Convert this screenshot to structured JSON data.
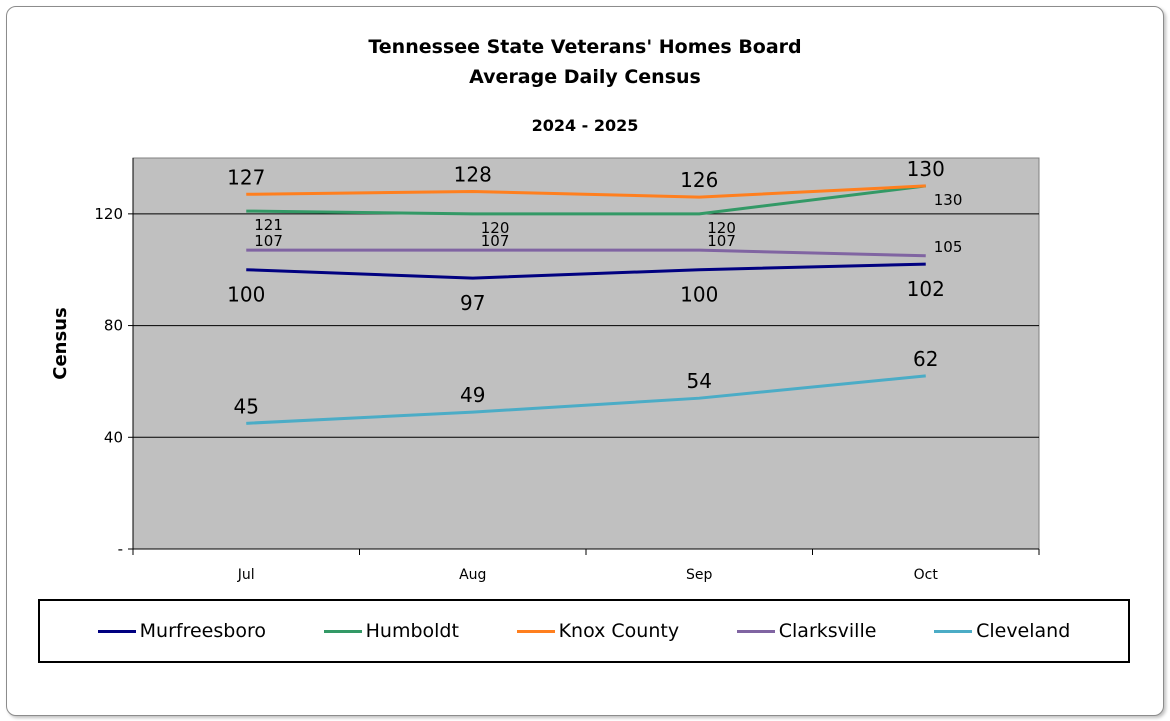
{
  "chart_data": {
    "type": "line",
    "title": "Tennessee State Veterans' Homes Board",
    "subtitle": "Average Daily Census",
    "period": "2024 - 2025",
    "ylabel": "Census",
    "xlabel": "",
    "categories": [
      "Jul",
      "Aug",
      "Sep",
      "Oct"
    ],
    "ylim": [
      0,
      140
    ],
    "yticks": [
      {
        "value": 0,
        "label": "-"
      },
      {
        "value": 40,
        "label": "40"
      },
      {
        "value": 80,
        "label": "80"
      },
      {
        "value": 120,
        "label": "120"
      }
    ],
    "grid": true,
    "legend": "bottom",
    "plot_background": "#c0c0c0",
    "series": [
      {
        "name": "Murfreesboro",
        "color": "#000080",
        "values": [
          100,
          97,
          100,
          102
        ],
        "label_style": "large",
        "label_pos": "below"
      },
      {
        "name": "Humboldt",
        "color": "#339966",
        "values": [
          121,
          120,
          120,
          130
        ],
        "label_style": "small",
        "label_pos": "below-right"
      },
      {
        "name": "Knox County",
        "color": "#ff7f1e",
        "values": [
          127,
          128,
          126,
          130
        ],
        "label_style": "large",
        "label_pos": "above"
      },
      {
        "name": "Clarksville",
        "color": "#8064a2",
        "values": [
          107,
          107,
          107,
          105
        ],
        "label_style": "small",
        "label_pos": "above-right"
      },
      {
        "name": "Cleveland",
        "color": "#4bacc6",
        "values": [
          45,
          49,
          54,
          62
        ],
        "label_style": "large",
        "label_pos": "above"
      }
    ]
  }
}
